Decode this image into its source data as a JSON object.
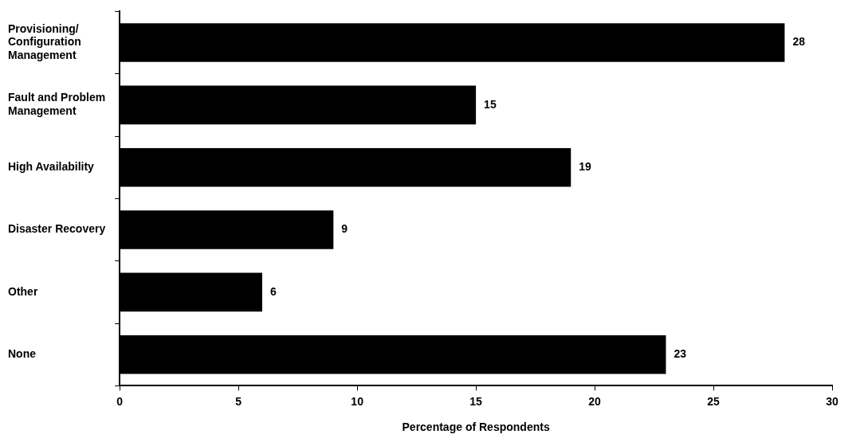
{
  "chart_data": {
    "type": "bar",
    "orientation": "horizontal",
    "categories": [
      "Provisioning/\nConfiguration\nManagement",
      "Fault and Problem\nManagement",
      "High Availability",
      "Disaster Recovery",
      "Other",
      "None"
    ],
    "values": [
      28,
      15,
      19,
      9,
      6,
      23
    ],
    "color": "#000000",
    "xlim": [
      0,
      30
    ],
    "xticks": [
      0,
      5,
      10,
      15,
      20,
      25,
      30
    ],
    "xlabel": "Percentage of Respondents",
    "data_labels": true,
    "grid": false,
    "legend": false
  }
}
